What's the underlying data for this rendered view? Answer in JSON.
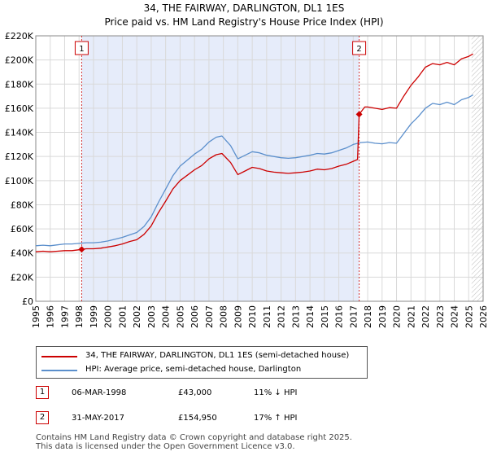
{
  "title": "34, THE FAIRWAY, DARLINGTON, DL1 1ES",
  "subtitle": "Price paid vs. HM Land Registry's House Price Index (HPI)",
  "colors": {
    "property": "#cc0000",
    "hpi": "#5b8fcc",
    "shade": "#e6ecfa",
    "grid": "#d9d9d9"
  },
  "legend": [
    {
      "label": "34, THE FAIRWAY, DARLINGTON, DL1 1ES (semi-detached house)"
    },
    {
      "label": "HPI: Average price, semi-detached house, Darlington"
    }
  ],
  "transactions": [
    {
      "num": "1",
      "date": "06-MAR-1998",
      "price": "£43,000",
      "hpi_diff": "11% ↓ HPI"
    },
    {
      "num": "2",
      "date": "31-MAY-2017",
      "price": "£154,950",
      "hpi_diff": "17% ↑ HPI"
    }
  ],
  "footer": {
    "line1": "Contains HM Land Registry data © Crown copyright and database right 2025.",
    "line2": "This data is licensed under the Open Government Licence v3.0."
  },
  "chart_data": {
    "type": "line",
    "title": "34, THE FAIRWAY, DARLINGTON, DL1 1ES",
    "subtitle": "Price paid vs. HM Land Registry's House Price Index (HPI)",
    "xlim": [
      1995,
      2026
    ],
    "ylim": [
      0,
      220000
    ],
    "x_ticks": [
      1995,
      1996,
      1997,
      1998,
      1999,
      2000,
      2001,
      2002,
      2003,
      2004,
      2005,
      2006,
      2007,
      2008,
      2009,
      2010,
      2011,
      2012,
      2013,
      2014,
      2015,
      2016,
      2017,
      2018,
      2019,
      2020,
      2021,
      2022,
      2023,
      2024,
      2025,
      2026
    ],
    "y_ticks": [
      0,
      20000,
      40000,
      60000,
      80000,
      100000,
      120000,
      140000,
      160000,
      180000,
      200000,
      220000
    ],
    "y_tick_labels": [
      "£0",
      "£20K",
      "£40K",
      "£60K",
      "£80K",
      "£100K",
      "£120K",
      "£140K",
      "£160K",
      "£180K",
      "£200K",
      "£220K"
    ],
    "grid": true,
    "ownership_shade": [
      1998.18,
      2017.41
    ],
    "future_hatch_from": 2025.2,
    "series": [
      {
        "name": "HPI: Average price, semi-detached house, Darlington",
        "x": [
          1995,
          1995.5,
          1996,
          1996.5,
          1997,
          1997.5,
          1998,
          1998.5,
          1999,
          1999.5,
          2000,
          2000.5,
          2001,
          2001.5,
          2002,
          2002.5,
          2003,
          2003.5,
          2004,
          2004.5,
          2005,
          2005.5,
          2006,
          2006.5,
          2007,
          2007.5,
          2007.9,
          2008.5,
          2009,
          2009.5,
          2010,
          2010.5,
          2011,
          2011.5,
          2012,
          2012.5,
          2013,
          2013.5,
          2014,
          2014.5,
          2015,
          2015.5,
          2016,
          2016.5,
          2017,
          2017.5,
          2018,
          2018.5,
          2019,
          2019.5,
          2020,
          2020.5,
          2021,
          2021.5,
          2022,
          2022.5,
          2023,
          2023.5,
          2024,
          2024.5,
          2025,
          2025.3
        ],
        "values": [
          46000,
          46500,
          46000,
          46800,
          47500,
          47500,
          48000,
          48500,
          48500,
          49000,
          50000,
          51500,
          53000,
          55000,
          57000,
          62000,
          70000,
          82000,
          93000,
          104000,
          112000,
          117000,
          122000,
          126000,
          132000,
          136000,
          137000,
          129000,
          118000,
          121000,
          124000,
          123000,
          121000,
          120000,
          119000,
          118500,
          119000,
          120000,
          121000,
          122500,
          122000,
          123000,
          125000,
          127000,
          130000,
          131500,
          132000,
          131000,
          130500,
          131500,
          131000,
          139000,
          147000,
          153000,
          160000,
          164000,
          163000,
          165000,
          163000,
          167000,
          169000,
          171000
        ]
      },
      {
        "name": "34, THE FAIRWAY, DARLINGTON, DL1 1ES (semi-detached house)",
        "x": [
          1995,
          1995.5,
          1996,
          1996.5,
          1997,
          1997.5,
          1998.18,
          1998.5,
          1999,
          1999.5,
          2000,
          2000.5,
          2001,
          2001.5,
          2002,
          2002.5,
          2003,
          2003.5,
          2004,
          2004.5,
          2005,
          2005.5,
          2006,
          2006.5,
          2007,
          2007.5,
          2007.9,
          2008.5,
          2009,
          2009.5,
          2010,
          2010.5,
          2011,
          2011.5,
          2012,
          2012.5,
          2013,
          2013.5,
          2014,
          2014.5,
          2015,
          2015.5,
          2016,
          2016.5,
          2017.0,
          2017.3,
          2017.41,
          2017.8,
          2018,
          2018.5,
          2019,
          2019.5,
          2020,
          2020.5,
          2021,
          2021.5,
          2022,
          2022.5,
          2023,
          2023.5,
          2024,
          2024.5,
          2025,
          2025.3
        ],
        "values": [
          41000,
          41500,
          41000,
          41500,
          42000,
          42000,
          43000,
          43500,
          43500,
          44000,
          45000,
          46000,
          47500,
          49500,
          51000,
          55500,
          62500,
          73500,
          83000,
          93000,
          100000,
          104500,
          109000,
          112500,
          118000,
          121500,
          122500,
          115000,
          105000,
          108000,
          111000,
          110000,
          108000,
          107000,
          106500,
          106000,
          106500,
          107000,
          108000,
          109500,
          109000,
          110000,
          112000,
          113500,
          116000,
          117500,
          154950,
          161000,
          161000,
          160000,
          159000,
          160500,
          160000,
          170000,
          179000,
          186000,
          194000,
          197000,
          196000,
          198000,
          196000,
          201000,
          203000,
          205000
        ]
      }
    ],
    "annotations": [
      {
        "label": "1",
        "x": 1998.18,
        "y": 43000
      },
      {
        "label": "2",
        "x": 2017.41,
        "y": 154950
      }
    ]
  }
}
